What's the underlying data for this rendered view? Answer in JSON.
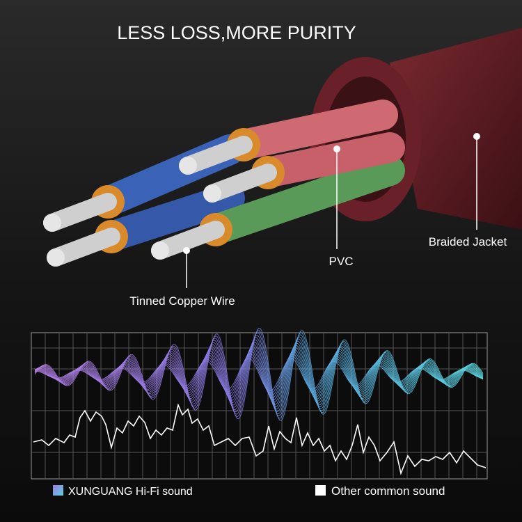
{
  "header": {
    "title": "LESS LOSS,MORE PURITY"
  },
  "labels": {
    "braided_jacket": "Braided Jacket",
    "pvc": "PVC",
    "tinned_copper_wire": "Tinned Copper Wire"
  },
  "legend": [
    "XUNGUANG Hi-Fi sound",
    "Other common sound"
  ]
}
